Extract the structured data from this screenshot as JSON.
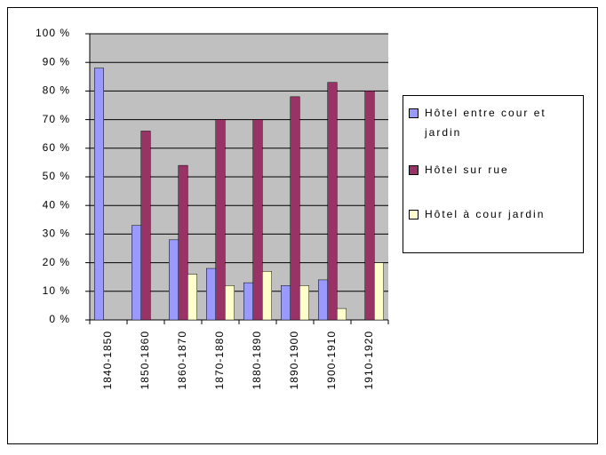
{
  "chart_data": {
    "type": "bar",
    "categories": [
      "1840-1850",
      "1850-1860",
      "1860-1870",
      "1870-1880",
      "1880-1890",
      "1890-1900",
      "1900-1910",
      "1910-1920"
    ],
    "series": [
      {
        "name": "Hôtel entre cour et jardin",
        "color": "#9999ff",
        "values": [
          88,
          33,
          28,
          18,
          13,
          12,
          14,
          0
        ]
      },
      {
        "name": "Hôtel sur rue",
        "color": "#993366",
        "values": [
          0,
          66,
          54,
          70,
          70,
          78,
          83,
          80
        ]
      },
      {
        "name": "Hôtel à cour jardin",
        "color": "#ffffcc",
        "values": [
          0,
          0,
          16,
          12,
          17,
          12,
          4,
          20
        ]
      }
    ],
    "ylim": [
      0,
      100
    ],
    "yticks": [
      {
        "value": 0,
        "label": "0 %"
      },
      {
        "value": 10,
        "label": "10 %"
      },
      {
        "value": 20,
        "label": "20 %"
      },
      {
        "value": 30,
        "label": "30 %"
      },
      {
        "value": 40,
        "label": "40 %"
      },
      {
        "value": 50,
        "label": "50 %"
      },
      {
        "value": 60,
        "label": "60 %"
      },
      {
        "value": 70,
        "label": "70 %"
      },
      {
        "value": 80,
        "label": "80 %"
      },
      {
        "value": 90,
        "label": "90 %"
      },
      {
        "value": 100,
        "label": "100 %"
      }
    ],
    "grid": true,
    "legend": "right"
  }
}
